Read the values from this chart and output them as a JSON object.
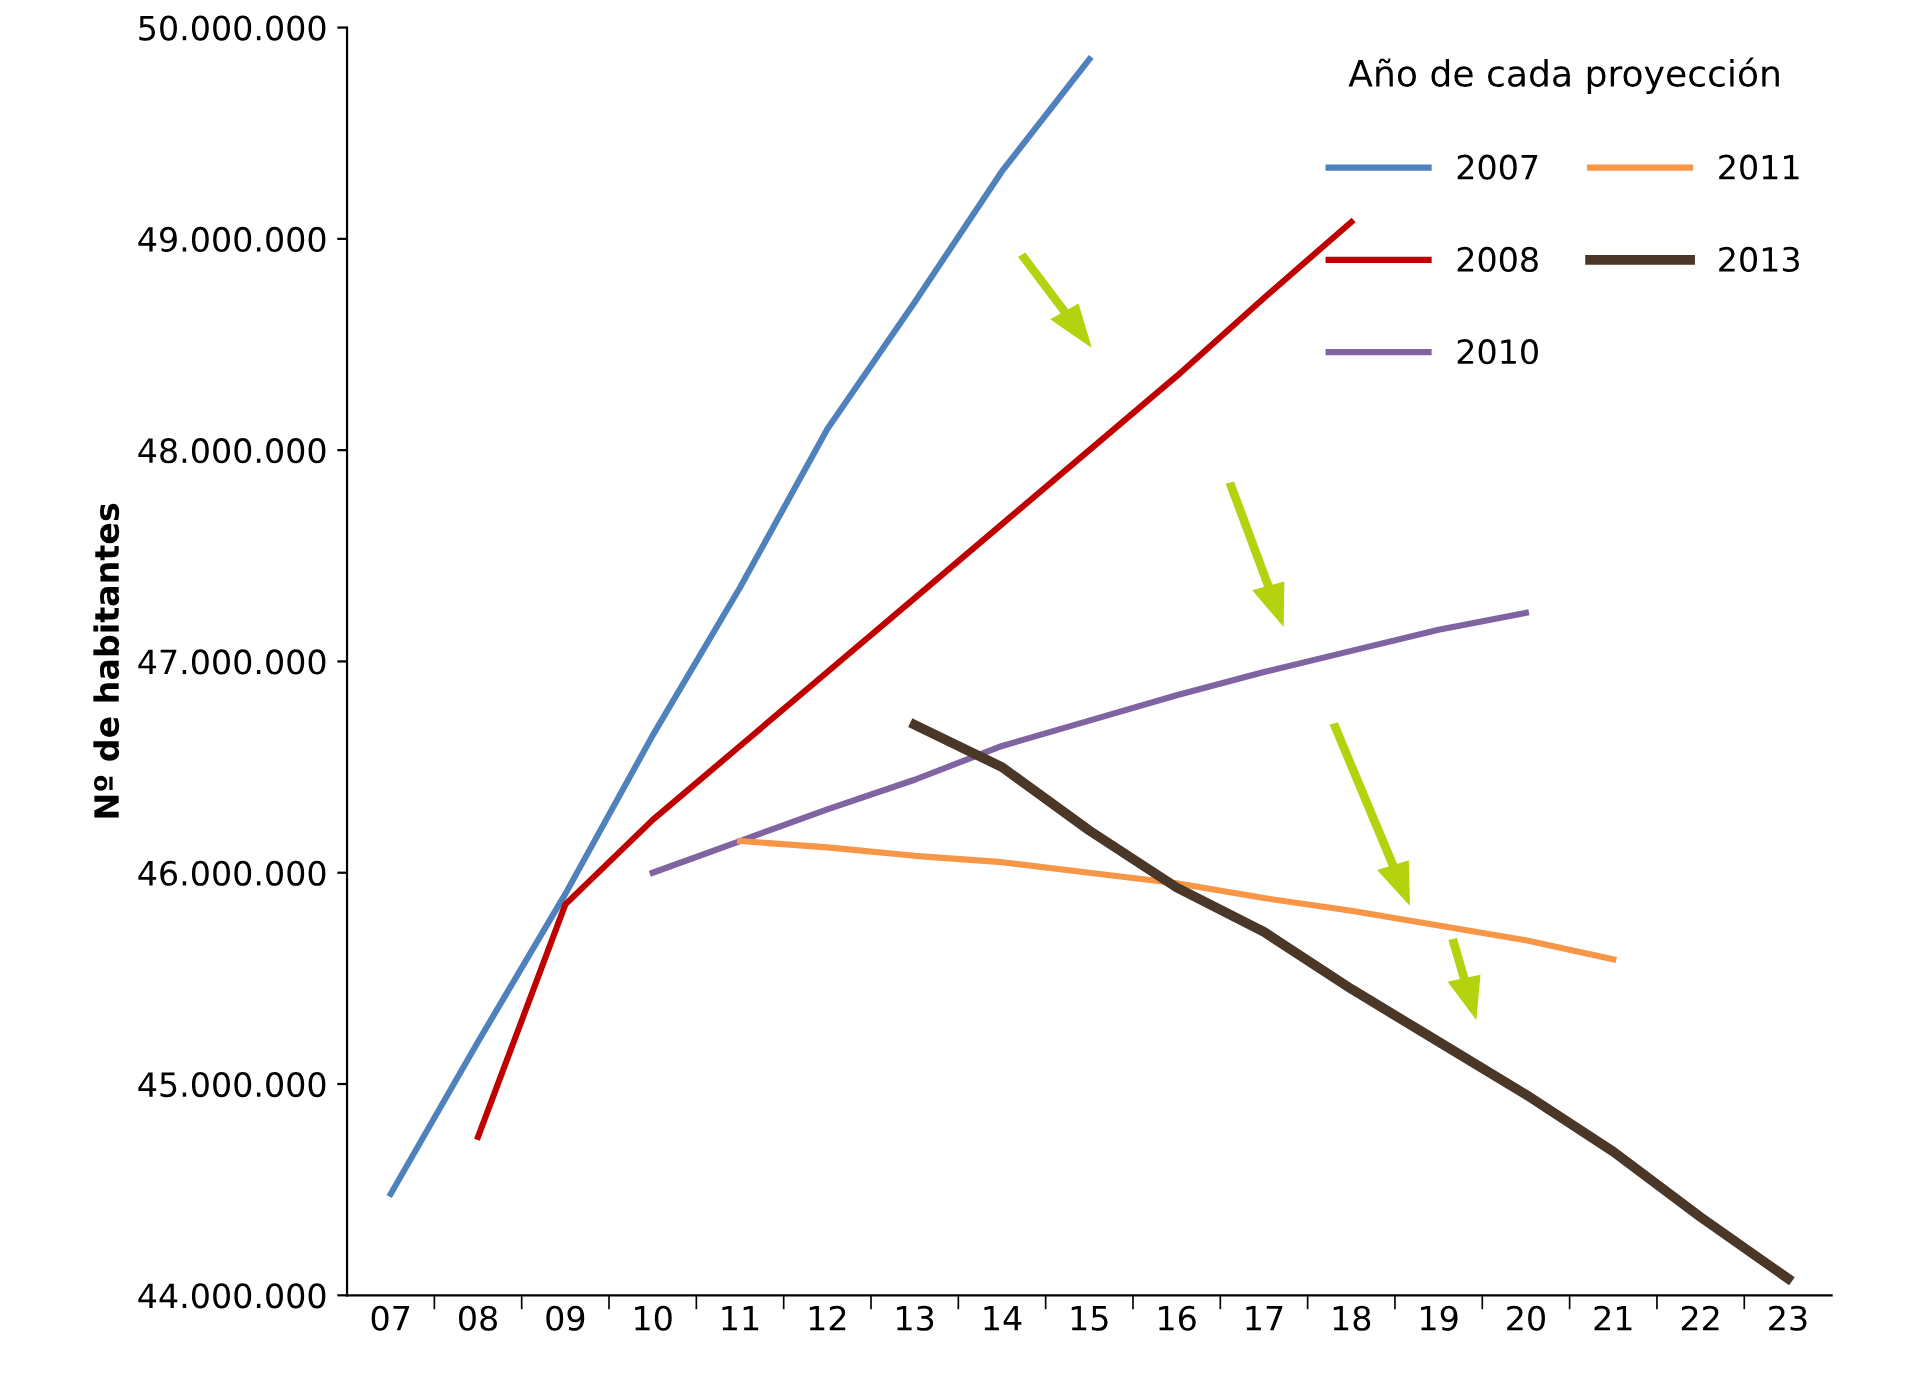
{
  "chart_data": {
    "type": "line",
    "ylabel": "Nº de habitantes",
    "legend_title": "Año de cada proyección",
    "legend": "top right",
    "grid": false,
    "marker": "none",
    "categories": [
      "07",
      "08",
      "09",
      "10",
      "11",
      "12",
      "13",
      "14",
      "15",
      "16",
      "17",
      "18",
      "19",
      "20",
      "21",
      "22",
      "23"
    ],
    "ylim": [
      44000000,
      50000000
    ],
    "yticks": [
      {
        "value": 44000000,
        "label": "44.000.000"
      },
      {
        "value": 45000000,
        "label": "45.000.000"
      },
      {
        "value": 46000000,
        "label": "46.000.000"
      },
      {
        "value": 47000000,
        "label": "47.000.000"
      },
      {
        "value": 48000000,
        "label": "48.000.000"
      },
      {
        "value": 49000000,
        "label": "49.000.000"
      },
      {
        "value": 50000000,
        "label": "50.000.000"
      }
    ],
    "series": [
      {
        "name": "2007",
        "color": "#4f81bd",
        "values": [
          44480000,
          45200000,
          45900000,
          46650000,
          47350000,
          48100000,
          48700000,
          49320000,
          49850000,
          null,
          null,
          null,
          null,
          null,
          null,
          null,
          null
        ]
      },
      {
        "name": "2008",
        "color": "#c00000",
        "values": [
          null,
          44750000,
          45850000,
          46250000,
          46600000,
          46950000,
          47300000,
          47650000,
          48000000,
          48350000,
          48720000,
          49080000,
          null,
          null,
          null,
          null,
          null
        ]
      },
      {
        "name": "2010",
        "color": "#8064a2",
        "values": [
          null,
          null,
          null,
          46000000,
          46150000,
          46300000,
          46440000,
          46600000,
          46720000,
          46840000,
          46950000,
          47050000,
          47150000,
          47230000,
          null,
          null,
          null
        ]
      },
      {
        "name": "2011",
        "color": "#f79646",
        "values": [
          null,
          null,
          null,
          null,
          46150000,
          46120000,
          46080000,
          46050000,
          46000000,
          45950000,
          45880000,
          45820000,
          45750000,
          45680000,
          45590000,
          null,
          null
        ]
      },
      {
        "name": "2013",
        "color": "#4a3728",
        "values": [
          null,
          null,
          null,
          null,
          null,
          null,
          46700000,
          46500000,
          46200000,
          45930000,
          45720000,
          45450000,
          45200000,
          44950000,
          44680000,
          44370000,
          44080000
        ]
      }
    ]
  }
}
